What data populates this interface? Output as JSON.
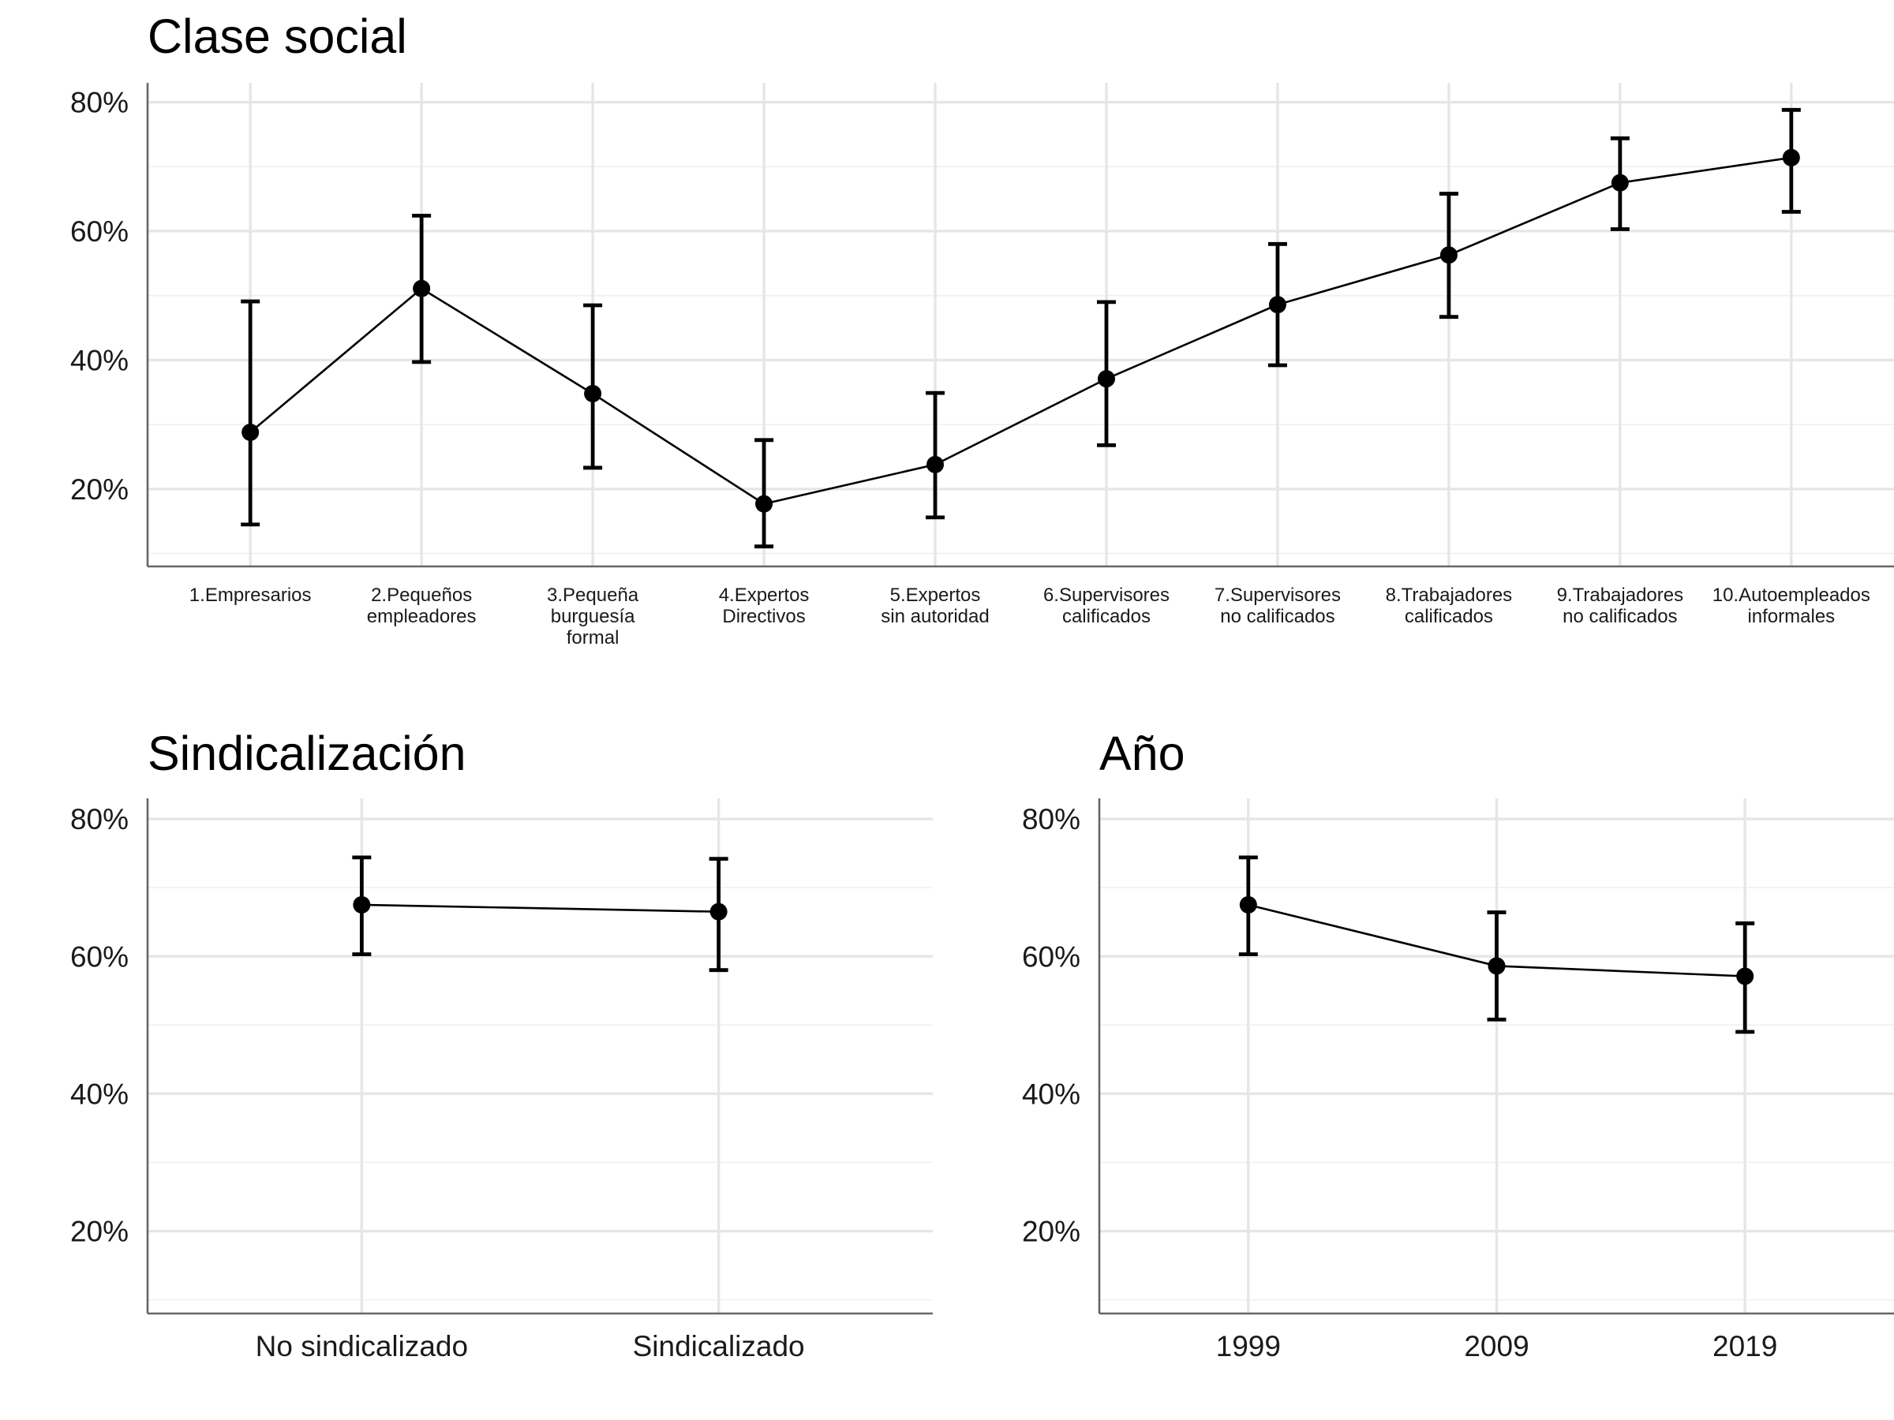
{
  "chart_data": [
    {
      "type": "line",
      "title": "Clase social",
      "ylim": [
        0.08,
        0.83
      ],
      "y_ticks": [
        0.2,
        0.4,
        0.6,
        0.8
      ],
      "y_tick_labels": [
        "20%",
        "40%",
        "60%",
        "80%"
      ],
      "grid": true,
      "categories": [
        [
          "1.Empresarios"
        ],
        [
          "2.Pequeños",
          "empleadores"
        ],
        [
          "3.Pequeña",
          "burguesía",
          "formal"
        ],
        [
          "4.Expertos",
          "Directivos"
        ],
        [
          "5.Expertos",
          "sin autoridad"
        ],
        [
          "6.Supervisores",
          "calificados"
        ],
        [
          "7.Supervisores",
          "no calificados"
        ],
        [
          "8.Trabajadores",
          "calificados"
        ],
        [
          "9.Trabajadores",
          "no calificados"
        ],
        [
          "10.Autoempleados",
          "informales"
        ]
      ],
      "values": [
        0.288,
        0.511,
        0.348,
        0.177,
        0.238,
        0.371,
        0.486,
        0.563,
        0.675,
        0.714
      ],
      "lower": [
        0.145,
        0.397,
        0.233,
        0.111,
        0.156,
        0.268,
        0.392,
        0.467,
        0.603,
        0.63
      ],
      "upper": [
        0.491,
        0.624,
        0.485,
        0.276,
        0.349,
        0.49,
        0.58,
        0.658,
        0.744,
        0.788
      ]
    },
    {
      "type": "line",
      "title": "Sindicalización",
      "ylim": [
        0.08,
        0.83
      ],
      "y_ticks": [
        0.2,
        0.4,
        0.6,
        0.8
      ],
      "y_tick_labels": [
        "20%",
        "40%",
        "60%",
        "80%"
      ],
      "grid": true,
      "categories": [
        [
          "No sindicalizado"
        ],
        [
          "Sindicalizado"
        ]
      ],
      "values": [
        0.675,
        0.665
      ],
      "lower": [
        0.603,
        0.58
      ],
      "upper": [
        0.744,
        0.742
      ]
    },
    {
      "type": "line",
      "title": "Año",
      "ylim": [
        0.08,
        0.83
      ],
      "y_ticks": [
        0.2,
        0.4,
        0.6,
        0.8
      ],
      "y_tick_labels": [
        "20%",
        "40%",
        "60%",
        "80%"
      ],
      "grid": true,
      "categories": [
        [
          "1999"
        ],
        [
          "2009"
        ],
        [
          "2019"
        ]
      ],
      "values": [
        0.675,
        0.586,
        0.571
      ],
      "lower": [
        0.603,
        0.508,
        0.49
      ],
      "upper": [
        0.744,
        0.664,
        0.648
      ]
    }
  ]
}
